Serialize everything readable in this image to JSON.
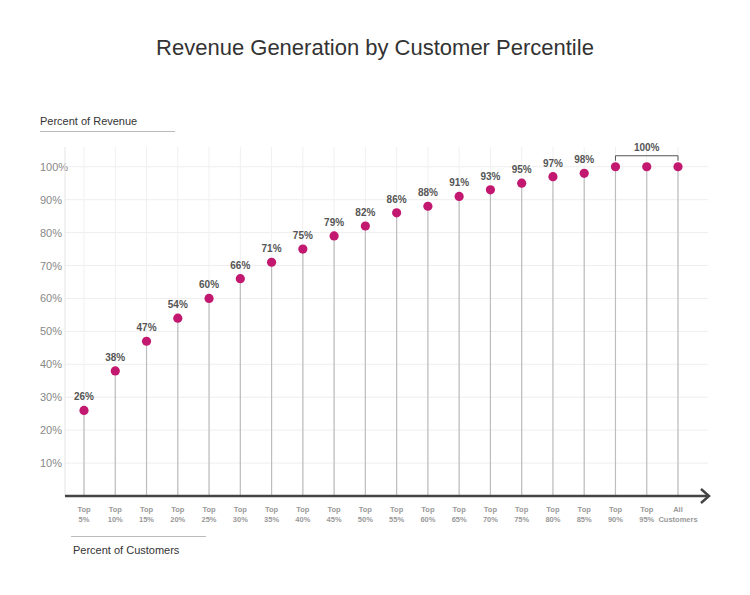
{
  "chart_data": {
    "type": "lollipop",
    "title": "Revenue Generation by Customer Percentile",
    "y_label": "Percent of Revenue",
    "x_label": "Percent of Customers",
    "categories": [
      "Top 5%",
      "Top 10%",
      "Top 15%",
      "Top 20%",
      "Top 25%",
      "Top 30%",
      "Top 35%",
      "Top 40%",
      "Top 45%",
      "Top 50%",
      "Top 55%",
      "Top 60%",
      "Top 65%",
      "Top 70%",
      "Top 75%",
      "Top 80%",
      "Top 85%",
      "Top 90%",
      "Top 95%",
      "All Customers"
    ],
    "values": [
      26,
      38,
      47,
      54,
      60,
      66,
      71,
      75,
      79,
      82,
      86,
      88,
      91,
      93,
      95,
      97,
      98,
      100,
      100,
      100
    ],
    "value_labels": [
      "26%",
      "38%",
      "47%",
      "54%",
      "60%",
      "66%",
      "71%",
      "75%",
      "79%",
      "82%",
      "86%",
      "88%",
      "91%",
      "93%",
      "95%",
      "97%",
      "98%",
      null,
      null,
      null
    ],
    "annotations": [
      {
        "text": "100%",
        "categories": [
          "Top 90%",
          "Top 95%",
          "All Customers"
        ]
      }
    ],
    "color": "#c2186f",
    "ylim": [
      0,
      106
    ],
    "yticks": [
      {
        "value": 10,
        "label": "10%"
      },
      {
        "value": 20,
        "label": "20%"
      },
      {
        "value": 30,
        "label": "30%"
      },
      {
        "value": 40,
        "label": "40%"
      },
      {
        "value": 50,
        "label": "50%"
      },
      {
        "value": 60,
        "label": "60%"
      },
      {
        "value": 70,
        "label": "70%"
      },
      {
        "value": 80,
        "label": "80%"
      },
      {
        "value": 90,
        "label": "90%"
      },
      {
        "value": 100,
        "label": "100%"
      }
    ],
    "grid": true,
    "data_labels": true
  }
}
